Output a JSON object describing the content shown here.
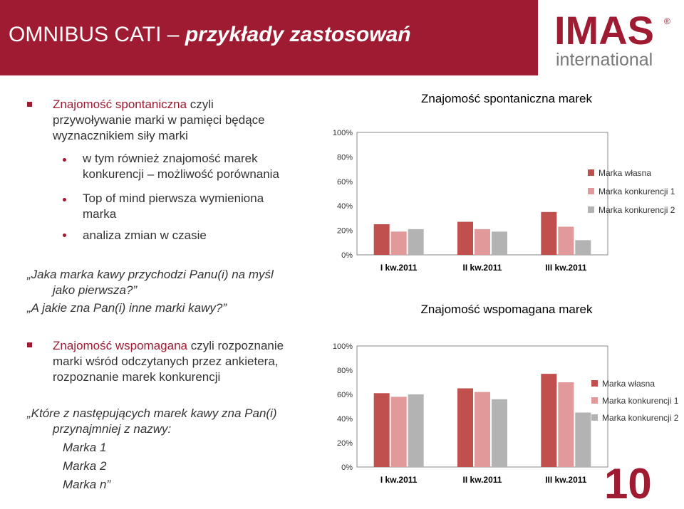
{
  "header": {
    "title_plain": "OMNIBUS CATI – ",
    "title_italic": "przykłady zastosowań"
  },
  "logo": {
    "brand": "IMAS",
    "sub": "international",
    "mark": "®",
    "color": "#9e1b32"
  },
  "section1": {
    "heading_highlight": "Znajomość spontaniczna",
    "heading_rest": " czyli",
    "heading_line2": "przywoływanie marki w pamięci będące",
    "heading_line3": "wyznacznikiem siły marki",
    "bullets": [
      {
        "line1": "w tym również znajomość marek",
        "line2": "konkurencji – możliwość porównania"
      },
      {
        "line1": "Top of mind  pierwsza wymieniona",
        "line2": "marka"
      },
      {
        "line1": "analiza zmian w czasie",
        "line2": ""
      }
    ],
    "question_line1": "„Jaka marka kawy przychodzi Panu(i) na myśl",
    "question_line2": "jako pierwsza?”",
    "question_line3": "„A jakie zna Pan(i) inne marki kawy?”"
  },
  "section2": {
    "heading_highlight": "Znajomość wspomagana",
    "heading_rest": " czyli rozpoznanie",
    "heading_line2": "marki wśród odczytanych przez ankietera,",
    "heading_line3": "rozpoznanie marek konkurencji",
    "question_line1": "„Które z następujących marek kawy zna Pan(i)",
    "question_line2": "przynajmniej z nazwy:",
    "options": [
      "Marka 1",
      "Marka 2",
      "Marka n”"
    ]
  },
  "page_number": "10",
  "colors": {
    "accent": "#9e1b32",
    "series": [
      "#c0504d",
      "#e19a99",
      "#b3b3b3"
    ]
  },
  "chart_data": [
    {
      "type": "bar",
      "title": "Znajomość spontaniczna marek",
      "categories": [
        "I kw.2011",
        "II kw.2011",
        "III kw.2011"
      ],
      "series": [
        {
          "name": "Marka własna",
          "values": [
            25,
            27,
            35
          ]
        },
        {
          "name": "Marka konkurencji 1",
          "values": [
            19,
            21,
            23
          ]
        },
        {
          "name": "Marka konkurencji 2",
          "values": [
            21,
            19,
            12
          ]
        }
      ],
      "ylim": [
        0,
        100
      ],
      "yticks": [
        "0%",
        "20%",
        "40%",
        "60%",
        "80%",
        "100%"
      ],
      "xlabel": "",
      "ylabel": "",
      "legend": "right",
      "grid": false
    },
    {
      "type": "bar",
      "title": "Znajomość wspomagana marek",
      "categories": [
        "I kw.2011",
        "II kw.2011",
        "III kw.2011"
      ],
      "series": [
        {
          "name": "Marka własna",
          "values": [
            61,
            65,
            77
          ]
        },
        {
          "name": "Marka konkurencji 1",
          "values": [
            58,
            62,
            70
          ]
        },
        {
          "name": "Marka konkurencji 2",
          "values": [
            60,
            56,
            45
          ]
        }
      ],
      "ylim": [
        0,
        100
      ],
      "yticks": [
        "0%",
        "20%",
        "40%",
        "60%",
        "80%",
        "100%"
      ],
      "xlabel": "",
      "ylabel": "",
      "legend": "right",
      "grid": false
    }
  ]
}
